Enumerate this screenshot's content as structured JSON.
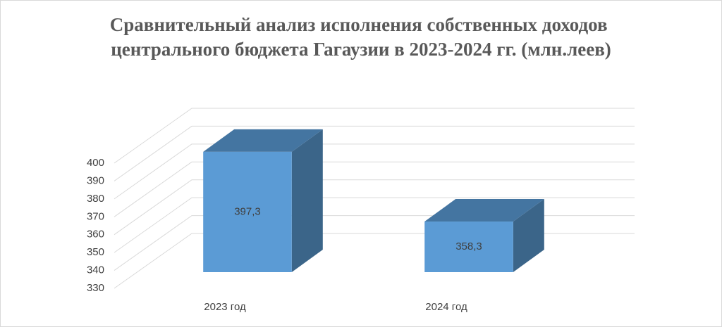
{
  "chart_data": {
    "type": "bar3d",
    "title": "Сравнительный анализ исполнения собственных доходов центрального бюджета Гагаузии в 2023-2024 гг. (млн.леев)",
    "categories": [
      "2023 год",
      "2024 год"
    ],
    "values": [
      397.3,
      358.3
    ],
    "value_labels": [
      "397,3",
      "358,3"
    ],
    "color": "#5b9bd5",
    "ylim": [
      330,
      400
    ],
    "yticks": [
      330,
      340,
      350,
      360,
      370,
      380,
      390,
      400
    ],
    "grid": true
  }
}
